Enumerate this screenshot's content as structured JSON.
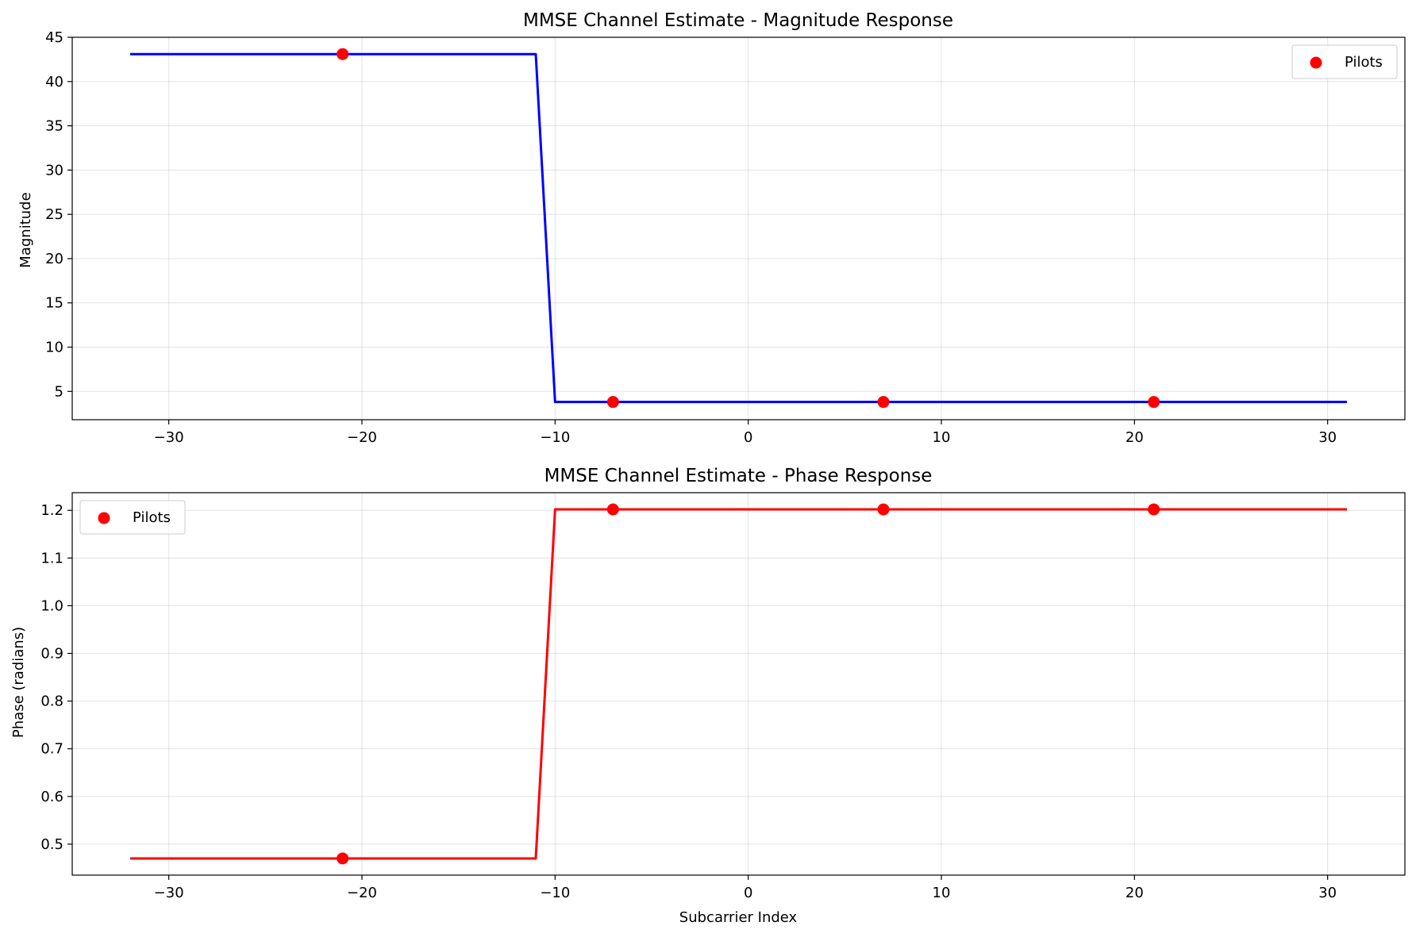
{
  "chart_data": [
    {
      "type": "line",
      "title": "MMSE Channel Estimate - Magnitude Response",
      "xlabel": "",
      "ylabel": "Magnitude",
      "xlim": [
        -35,
        34
      ],
      "ylim": [
        1.8,
        45
      ],
      "xticks": [
        -30,
        -20,
        -10,
        0,
        10,
        20,
        30
      ],
      "yticks": [
        5,
        10,
        15,
        20,
        25,
        30,
        35,
        40,
        45
      ],
      "xtick_labels": [
        "−30",
        "−20",
        "−10",
        "0",
        "10",
        "20",
        "30"
      ],
      "ytick_labels": [
        "5",
        "10",
        "15",
        "20",
        "25",
        "30",
        "35",
        "40",
        "45"
      ],
      "grid": true,
      "legend_position": "upper-right",
      "line": {
        "color": "#0000ff",
        "x": [
          -32,
          -11,
          -10,
          31
        ],
        "y": [
          43.1,
          43.1,
          3.8,
          3.8
        ]
      },
      "scatter": {
        "name": "Pilots",
        "color": "#ff0000",
        "x": [
          -21,
          -7,
          7,
          21
        ],
        "y": [
          43.1,
          3.8,
          3.8,
          3.8
        ]
      }
    },
    {
      "type": "line",
      "title": "MMSE Channel Estimate - Phase Response",
      "xlabel": "Subcarrier Index",
      "ylabel": "Phase (radians)",
      "xlim": [
        -35,
        34
      ],
      "ylim": [
        0.435,
        1.237
      ],
      "xticks": [
        -30,
        -20,
        -10,
        0,
        10,
        20,
        30
      ],
      "yticks": [
        0.5,
        0.6,
        0.7,
        0.8,
        0.9,
        1.0,
        1.1,
        1.2
      ],
      "xtick_labels": [
        "−30",
        "−20",
        "−10",
        "0",
        "10",
        "20",
        "30"
      ],
      "ytick_labels": [
        "0.5",
        "0.6",
        "0.7",
        "0.8",
        "0.9",
        "1.0",
        "1.1",
        "1.2"
      ],
      "grid": true,
      "legend_position": "upper-left",
      "line": {
        "color": "#ff0000",
        "x": [
          -32,
          -11,
          -10,
          31
        ],
        "y": [
          0.47,
          0.47,
          1.202,
          1.202
        ]
      },
      "scatter": {
        "name": "Pilots",
        "color": "#ff0000",
        "x": [
          -21,
          -7,
          7,
          21
        ],
        "y": [
          0.47,
          1.202,
          1.202,
          1.202
        ]
      }
    }
  ]
}
